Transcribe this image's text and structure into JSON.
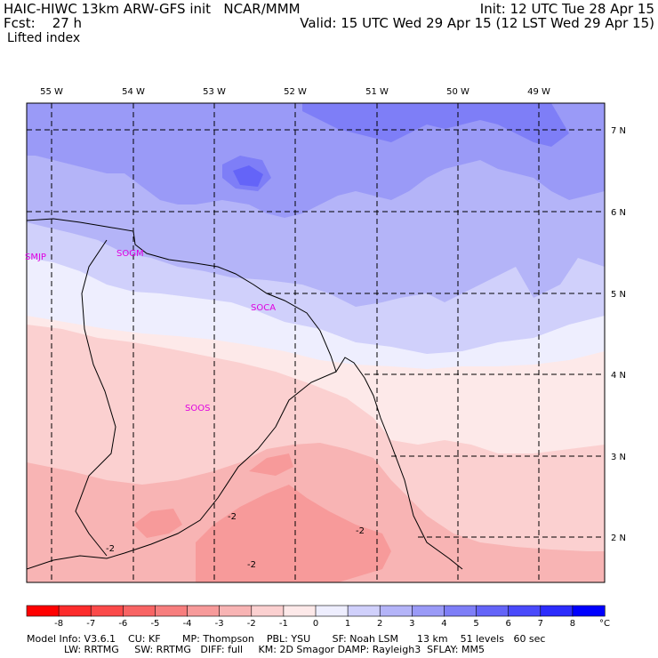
{
  "header": {
    "title_left": "HAIC-HIWC 13km ARW-GFS init   NCAR/MMM",
    "forecast": "Fcst:    27 h",
    "variable": "Lifted index",
    "init": "Init: 12 UTC Tue 28 Apr 15",
    "valid": "Valid: 15 UTC Wed 29 Apr 15 (12 LST Wed 29 Apr 15)"
  },
  "axes": {
    "longitudes": [
      "55 W",
      "54 W",
      "53 W",
      "52 W",
      "51 W",
      "50 W",
      "49 W"
    ],
    "latitudes": [
      "7 N",
      "6 N",
      "5 N",
      "4 N",
      "3 N",
      "2 N"
    ]
  },
  "stations": [
    {
      "id": "SMJP"
    },
    {
      "id": "SOGM"
    },
    {
      "id": "SOCA"
    },
    {
      "id": "SOOS"
    }
  ],
  "contour_labels": [
    "-2",
    "-2",
    "-2",
    "-2"
  ],
  "colorbar": {
    "ticks": [
      "-8",
      "-7",
      "-6",
      "-5",
      "-4",
      "-3",
      "-2",
      "-1",
      "0",
      "1",
      "2",
      "3",
      "4",
      "5",
      "6",
      "7",
      "8"
    ],
    "unit": "°C",
    "colors": [
      "#ff0000",
      "#fd2c2c",
      "#fb4a4a",
      "#f86464",
      "#f77e7e",
      "#f79a9a",
      "#f8b4b4",
      "#fbd0d0",
      "#fde9e9",
      "#eeeefe",
      "#d0d0fb",
      "#b4b4f8",
      "#9a9af7",
      "#7e7ef7",
      "#6464f8",
      "#4a4afb",
      "#2c2cfd",
      "#0000ff"
    ]
  },
  "model_info": {
    "line1": "Model Info: V3.6.1    CU: KF       MP: Thompson    PBL: YSU       SF: Noah LSM      13 km    51 levels   60 sec",
    "line2": "LW: RRTMG     SW: RRTMG   DIFF: full     KM: 2D Smagor DAMP: Rayleigh3  SFLAY: MM5"
  },
  "colors": {
    "magenta": "#e000e0",
    "grid": "#000000"
  }
}
